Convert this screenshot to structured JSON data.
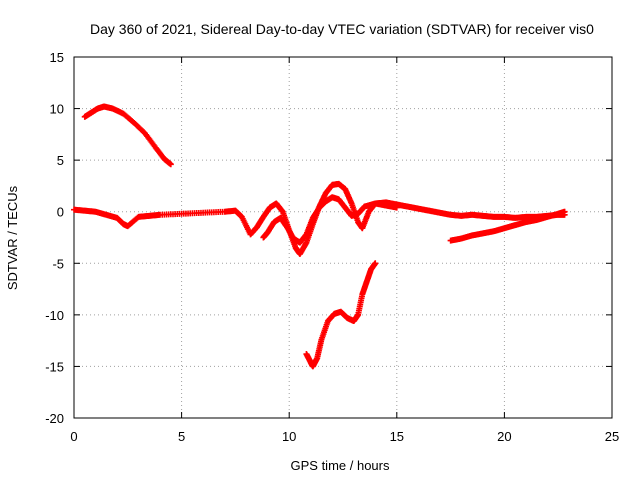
{
  "chart_data": {
    "type": "scatter",
    "title": "Day 360 of 2021, Sidereal Day-to-day VTEC variation (SDTVAR) for receiver vis0",
    "xlabel": "GPS time / hours",
    "ylabel": "SDTVAR / TECUs",
    "xlim": [
      0,
      25
    ],
    "ylim": [
      -20,
      15
    ],
    "x_ticks": [
      0,
      5,
      10,
      15,
      20,
      25
    ],
    "y_ticks": [
      -20,
      -15,
      -10,
      -5,
      0,
      5,
      10,
      15
    ],
    "x_tick_labels": [
      "0",
      "5",
      "10",
      "15",
      "20",
      "25"
    ],
    "y_tick_labels": [
      "-20",
      "-15",
      "-10",
      "-5",
      "0",
      "5",
      "10",
      "15"
    ],
    "grid": true,
    "marker": "+",
    "color": "#ff0000",
    "series": [
      {
        "name": "early-high",
        "points": [
          [
            0.5,
            9.2
          ],
          [
            0.8,
            9.6
          ],
          [
            1.1,
            10.0
          ],
          [
            1.4,
            10.2
          ],
          [
            1.8,
            10.0
          ],
          [
            2.3,
            9.5
          ],
          [
            2.8,
            8.6
          ],
          [
            3.3,
            7.6
          ],
          [
            3.8,
            6.2
          ],
          [
            4.2,
            5.1
          ],
          [
            4.5,
            4.6
          ]
        ]
      },
      {
        "name": "main-near-zero-a",
        "points": [
          [
            0.0,
            0.2
          ],
          [
            0.5,
            0.1
          ],
          [
            1.0,
            0.0
          ],
          [
            1.5,
            -0.3
          ],
          [
            2.0,
            -0.6
          ],
          [
            2.3,
            -1.2
          ],
          [
            2.5,
            -1.4
          ],
          [
            3.0,
            -0.5
          ],
          [
            3.5,
            -0.4
          ],
          [
            4.0,
            -0.3
          ],
          [
            5.0,
            -0.2
          ],
          [
            6.0,
            -0.1
          ],
          [
            7.0,
            0.0
          ],
          [
            7.5,
            0.1
          ],
          [
            7.8,
            -0.5
          ],
          [
            8.2,
            -2.2
          ],
          [
            8.5,
            -1.5
          ],
          [
            8.8,
            -0.5
          ],
          [
            9.1,
            0.4
          ],
          [
            9.4,
            0.8
          ],
          [
            9.7,
            0.0
          ],
          [
            10.0,
            -1.8
          ],
          [
            10.3,
            -3.5
          ],
          [
            10.5,
            -4.1
          ],
          [
            10.8,
            -3.0
          ],
          [
            11.1,
            -1.2
          ],
          [
            11.4,
            0.5
          ],
          [
            11.7,
            1.8
          ],
          [
            12.0,
            2.6
          ],
          [
            12.3,
            2.7
          ],
          [
            12.6,
            2.2
          ],
          [
            12.9,
            0.8
          ],
          [
            13.2,
            -1.0
          ],
          [
            13.4,
            -1.6
          ],
          [
            13.7,
            0.0
          ],
          [
            14.0,
            0.8
          ],
          [
            14.5,
            0.9
          ],
          [
            15.0,
            0.7
          ],
          [
            15.5,
            0.5
          ],
          [
            16.0,
            0.3
          ],
          [
            16.5,
            0.1
          ],
          [
            17.0,
            -0.1
          ],
          [
            17.5,
            -0.3
          ],
          [
            18.0,
            -0.4
          ],
          [
            18.5,
            -0.3
          ],
          [
            19.0,
            -0.4
          ],
          [
            19.5,
            -0.5
          ],
          [
            20.0,
            -0.5
          ],
          [
            20.5,
            -0.6
          ],
          [
            21.0,
            -0.5
          ],
          [
            21.5,
            -0.5
          ],
          [
            22.0,
            -0.4
          ],
          [
            22.5,
            -0.3
          ],
          [
            22.8,
            -0.3
          ]
        ]
      },
      {
        "name": "main-near-zero-b",
        "points": [
          [
            8.8,
            -2.5
          ],
          [
            9.0,
            -2.0
          ],
          [
            9.3,
            -1.0
          ],
          [
            9.6,
            -0.6
          ],
          [
            9.9,
            -1.5
          ],
          [
            10.2,
            -2.6
          ],
          [
            10.5,
            -3.0
          ],
          [
            10.8,
            -2.2
          ],
          [
            11.1,
            -0.6
          ],
          [
            11.4,
            0.4
          ],
          [
            11.7,
            1.0
          ],
          [
            12.0,
            1.4
          ],
          [
            12.3,
            1.2
          ],
          [
            12.6,
            0.4
          ],
          [
            12.9,
            -0.4
          ],
          [
            13.2,
            -0.2
          ],
          [
            13.5,
            0.5
          ],
          [
            14.0,
            0.8
          ],
          [
            14.5,
            0.6
          ],
          [
            15.0,
            0.4
          ]
        ]
      },
      {
        "name": "late-low",
        "points": [
          [
            17.5,
            -2.8
          ],
          [
            18.0,
            -2.6
          ],
          [
            18.5,
            -2.3
          ],
          [
            19.0,
            -2.1
          ],
          [
            19.5,
            -1.9
          ],
          [
            20.0,
            -1.6
          ],
          [
            20.5,
            -1.3
          ],
          [
            21.0,
            -1.0
          ],
          [
            21.5,
            -0.8
          ],
          [
            22.0,
            -0.5
          ],
          [
            22.5,
            -0.2
          ],
          [
            22.8,
            0.0
          ]
        ]
      },
      {
        "name": "deep-dip",
        "points": [
          [
            10.8,
            -13.8
          ],
          [
            11.0,
            -14.6
          ],
          [
            11.1,
            -15.0
          ],
          [
            11.3,
            -14.2
          ],
          [
            11.5,
            -12.4
          ],
          [
            11.8,
            -10.6
          ],
          [
            12.1,
            -9.9
          ],
          [
            12.4,
            -9.7
          ],
          [
            12.7,
            -10.3
          ],
          [
            13.0,
            -10.6
          ],
          [
            13.2,
            -10.0
          ],
          [
            13.4,
            -8.0
          ],
          [
            13.6,
            -6.8
          ],
          [
            13.8,
            -5.6
          ],
          [
            14.0,
            -5.0
          ]
        ]
      }
    ]
  }
}
